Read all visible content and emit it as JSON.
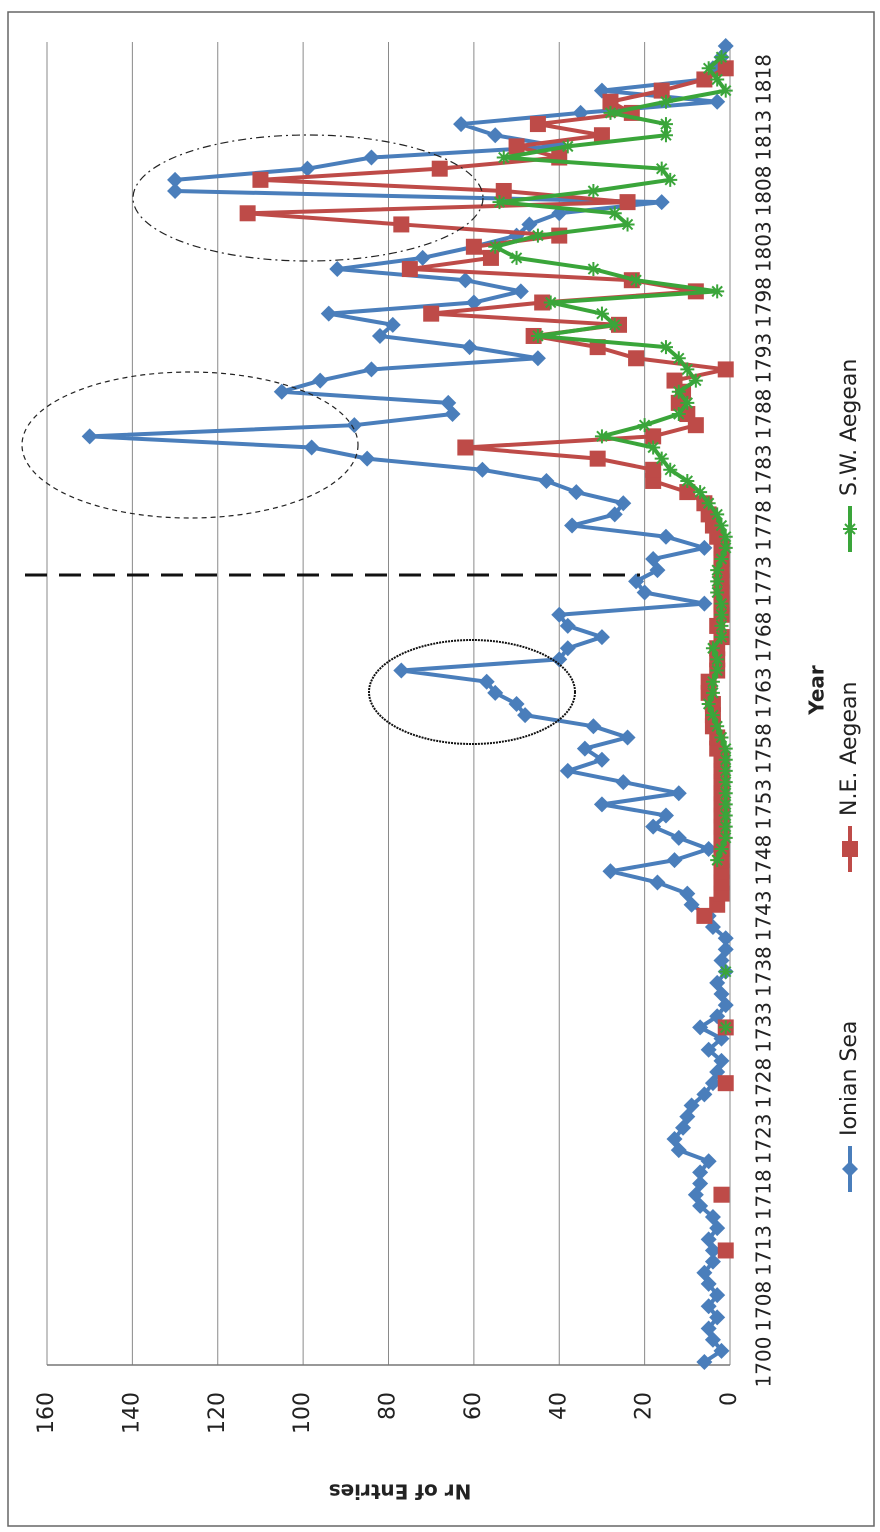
{
  "chart_data": {
    "type": "line",
    "x_label": "Year",
    "y_label": "Nr of Entries",
    "categories": [
      "1700",
      null,
      null,
      null,
      null,
      "1708",
      null,
      null,
      null,
      null,
      "1713",
      null,
      null,
      null,
      null,
      "1718",
      null,
      null,
      null,
      null,
      "1723",
      null,
      null,
      null,
      null,
      "1728",
      null,
      null,
      null,
      null,
      "1733",
      null,
      null,
      null,
      null,
      "1738",
      null,
      null,
      null,
      null,
      "1743",
      null,
      null,
      null,
      null,
      "1748",
      null,
      null,
      null,
      null,
      "1753",
      null,
      null,
      null,
      null,
      "1758",
      null,
      null,
      null,
      null,
      "1763",
      null,
      null,
      null,
      null,
      "1768",
      null,
      null,
      null,
      null,
      "1773",
      null,
      null,
      null,
      null,
      "1778",
      null,
      null,
      null,
      null,
      "1783",
      null,
      null,
      null,
      null,
      "1788",
      null,
      null,
      null,
      null,
      "1793",
      null,
      null,
      null,
      null,
      "1798",
      null,
      null,
      null,
      null,
      "1803",
      null,
      null,
      null,
      null,
      "1808",
      null,
      null,
      null,
      null,
      "1813",
      null,
      null,
      null,
      null,
      "1818",
      null,
      null,
      null
    ],
    "series": [
      {
        "name": "Ionian Sea",
        "color": "#4a7ebb",
        "marker": "diamond",
        "values": [
          6,
          2,
          4,
          5,
          3,
          5,
          3,
          5,
          6,
          4,
          4,
          5,
          3,
          4,
          7,
          8,
          7,
          7,
          5,
          12,
          13,
          11,
          10,
          9,
          6,
          4,
          3,
          2,
          5,
          2,
          7,
          3,
          1,
          2,
          3,
          1,
          2,
          1,
          1,
          4,
          5,
          9,
          10,
          17,
          28,
          13,
          5,
          12,
          18,
          15,
          30,
          12,
          25,
          38,
          30,
          34,
          24,
          32,
          48,
          50,
          55,
          57,
          77,
          40,
          38,
          30,
          38,
          40,
          6,
          20,
          22,
          17,
          18,
          6,
          15,
          37,
          27,
          25,
          36,
          43,
          58,
          85,
          98,
          150,
          88,
          65,
          66,
          105,
          96,
          84,
          45,
          61,
          82,
          79,
          94,
          60,
          49,
          62,
          92,
          72,
          60,
          50,
          47,
          40,
          16,
          130,
          130,
          99,
          84,
          40,
          55,
          63,
          35,
          3,
          30,
          6,
          4,
          2,
          1
        ]
      },
      {
        "name": "N.E. Aegean",
        "color": "#be4b48",
        "marker": "square",
        "values": [
          null,
          null,
          null,
          null,
          null,
          null,
          null,
          null,
          null,
          null,
          1,
          null,
          null,
          null,
          null,
          2,
          null,
          null,
          null,
          null,
          null,
          null,
          null,
          null,
          null,
          1,
          null,
          null,
          null,
          null,
          1,
          null,
          null,
          null,
          null,
          null,
          null,
          null,
          null,
          null,
          6,
          3,
          2,
          2,
          2,
          2,
          2,
          2,
          2,
          2,
          2,
          2,
          2,
          2,
          2,
          3,
          3,
          4,
          4,
          4,
          5,
          5,
          3,
          3,
          3,
          2,
          3,
          2,
          2,
          2,
          2,
          2,
          2,
          2,
          3,
          4,
          5,
          6,
          10,
          18,
          18,
          31,
          62,
          18,
          8,
          10,
          12,
          11,
          13,
          1,
          22,
          31,
          46,
          26,
          70,
          44,
          8,
          23,
          75,
          56,
          60,
          40,
          77,
          113,
          24,
          53,
          110,
          68,
          40,
          50,
          30,
          45,
          23,
          28,
          16,
          6,
          1,
          null,
          null
        ]
      },
      {
        "name": "S.W. Aegean",
        "color": "#3aa53a",
        "marker": "star",
        "values": [
          null,
          null,
          null,
          null,
          null,
          null,
          null,
          null,
          null,
          null,
          null,
          null,
          null,
          null,
          null,
          null,
          null,
          null,
          null,
          null,
          null,
          null,
          null,
          null,
          null,
          null,
          null,
          null,
          null,
          null,
          1,
          null,
          null,
          null,
          null,
          1,
          null,
          null,
          null,
          null,
          null,
          null,
          null,
          null,
          null,
          3,
          2,
          1,
          1,
          1,
          1,
          1,
          1,
          1,
          1,
          1,
          2,
          3,
          4,
          5,
          4,
          4,
          3,
          3,
          4,
          2,
          2,
          2,
          2,
          3,
          3,
          3,
          2,
          1,
          1,
          2,
          3,
          5,
          7,
          10,
          14,
          16,
          18,
          30,
          20,
          12,
          10,
          12,
          8,
          10,
          12,
          15,
          45,
          27,
          30,
          42,
          3,
          22,
          32,
          50,
          55,
          45,
          24,
          27,
          54,
          32,
          14,
          16,
          53,
          38,
          15,
          15,
          28,
          15,
          1,
          3,
          5,
          2,
          null
        ]
      }
    ],
    "ylim": [
      0,
      160
    ],
    "yticks": [
      0,
      20,
      40,
      60,
      80,
      100,
      120,
      140,
      160
    ],
    "grid": true,
    "legend": "bottom"
  }
}
